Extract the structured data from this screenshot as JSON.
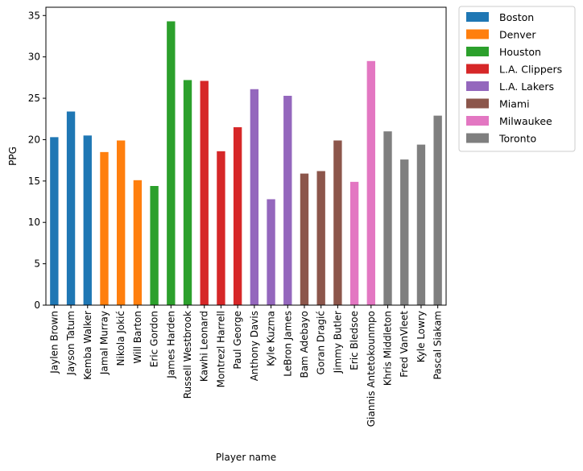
{
  "chart_data": {
    "type": "bar",
    "xlabel": "Player name",
    "ylabel": "PPG",
    "ylim": [
      0,
      36
    ],
    "yticks": [
      0,
      5,
      10,
      15,
      20,
      25,
      30,
      35
    ],
    "legend_position": "outside-top-right",
    "grid": false,
    "categories": [
      "Jaylen Brown",
      "Jayson Tatum",
      "Kemba Walker",
      "Jamal Murray",
      "Nikola Jokić",
      "Will Barton",
      "Eric Gordon",
      "James Harden",
      "Russell Westbrook",
      "Kawhi Leonard",
      "Montrezl Harrell",
      "Paul George",
      "Anthony Davis",
      "Kyle Kuzma",
      "LeBron James",
      "Bam Adebayo",
      "Goran Dragić",
      "Jimmy Butler",
      "Eric Bledsoe",
      "Giannis Antetokounmpo",
      "Khris Middleton",
      "Fred VanVleet",
      "Kyle Lowry",
      "Pascal Siakam"
    ],
    "values": [
      20.3,
      23.4,
      20.5,
      18.5,
      19.9,
      15.1,
      14.4,
      34.3,
      27.2,
      27.1,
      18.6,
      21.5,
      26.1,
      12.8,
      25.3,
      15.9,
      16.2,
      19.9,
      14.9,
      29.5,
      21.0,
      17.6,
      19.4,
      22.9
    ],
    "team_of": [
      0,
      0,
      0,
      1,
      1,
      1,
      2,
      2,
      2,
      3,
      3,
      3,
      4,
      4,
      4,
      5,
      5,
      5,
      6,
      6,
      7,
      7,
      7,
      7
    ],
    "series": [
      {
        "name": "Boston",
        "color": "#1f77b4"
      },
      {
        "name": "Denver",
        "color": "#ff7f0e"
      },
      {
        "name": "Houston",
        "color": "#2ca02c"
      },
      {
        "name": "L.A. Clippers",
        "color": "#d62728"
      },
      {
        "name": "L.A. Lakers",
        "color": "#9467bd"
      },
      {
        "name": "Miami",
        "color": "#8c564b"
      },
      {
        "name": "Milwaukee",
        "color": "#e377c2"
      },
      {
        "name": "Toronto",
        "color": "#7f7f7f"
      }
    ]
  }
}
